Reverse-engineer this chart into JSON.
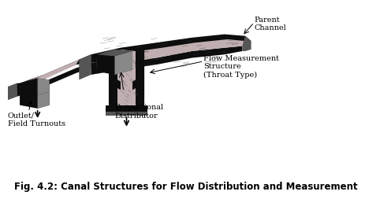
{
  "title": "Fig. 4.2: Canal Structures for Flow Distribution and Measurement",
  "title_fontsize": 8.5,
  "bg_color": "#ffffff",
  "labels": {
    "parent_channel": "Parent\nChannel",
    "flow_measurement": "Flow Measurement\nStructure\n(Throat Type)",
    "proportional_distributor": "Proportional\nDistributor",
    "outlet_field": "Outlet/\nField Turnouts"
  },
  "label_fontsize": 7.0,
  "dark": "#0d0d0d",
  "texture": "#c0aeb0",
  "mid": "#555555",
  "gray": "#888888"
}
